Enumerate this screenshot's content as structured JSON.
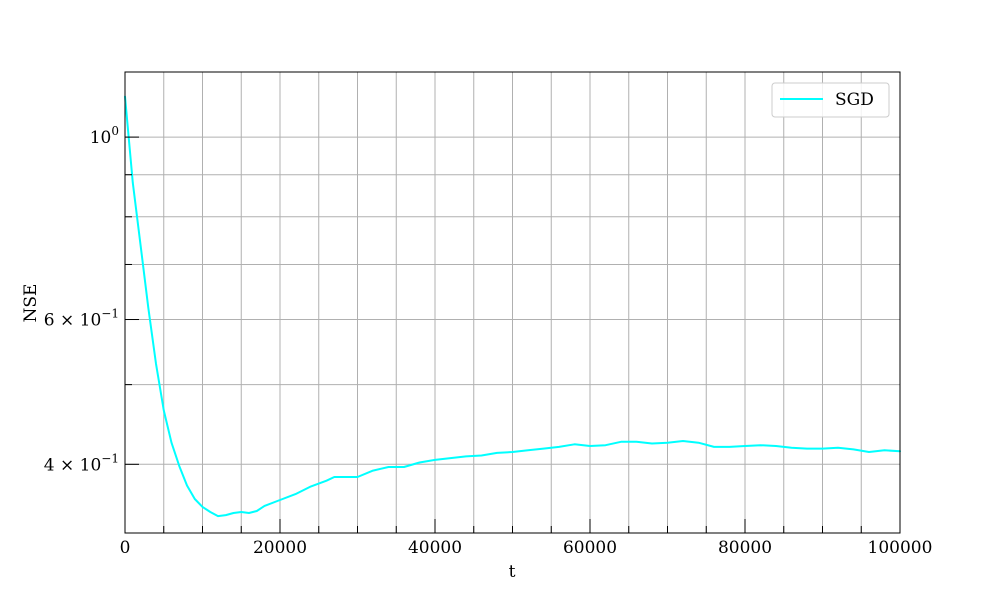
{
  "chart_data": {
    "type": "line",
    "title": "",
    "xlabel": "t",
    "ylabel": "NSE",
    "xlim": [
      0,
      100000
    ],
    "ylim": [
      0.33,
      1.2
    ],
    "yscale": "log",
    "grid": true,
    "legend_position": "top-right",
    "x_ticks": [
      {
        "value": 0,
        "label": "0"
      },
      {
        "value": 20000,
        "label": "20000"
      },
      {
        "value": 40000,
        "label": "40000"
      },
      {
        "value": 60000,
        "label": "60000"
      },
      {
        "value": 80000,
        "label": "80000"
      },
      {
        "value": 100000,
        "label": "100000"
      }
    ],
    "x_minor_ticks": [
      5000,
      10000,
      15000,
      25000,
      30000,
      35000,
      45000,
      50000,
      55000,
      65000,
      70000,
      75000,
      85000,
      90000,
      95000
    ],
    "y_ticks": [
      {
        "value": 1.0,
        "label": "10",
        "sup": "0"
      },
      {
        "value": 0.6,
        "label": "6 × 10",
        "sup": "−1"
      },
      {
        "value": 0.4,
        "label": "4 × 10",
        "sup": "−1"
      }
    ],
    "y_minor_ticks": [
      0.5,
      0.7,
      0.8,
      0.9
    ],
    "series": [
      {
        "name": "SGD",
        "color": "#00ffff",
        "x": [
          0,
          1000,
          2000,
          3000,
          4000,
          5000,
          6000,
          7000,
          8000,
          9000,
          10000,
          11000,
          12000,
          13000,
          14000,
          15000,
          16000,
          17000,
          18000,
          20000,
          22000,
          24000,
          26000,
          27000,
          29000,
          30000,
          32000,
          34000,
          36000,
          38000,
          40000,
          42000,
          44000,
          46000,
          48000,
          50000,
          52000,
          54000,
          56000,
          58000,
          60000,
          62000,
          64000,
          66000,
          68000,
          70000,
          72000,
          74000,
          76000,
          78000,
          80000,
          82000,
          84000,
          86000,
          88000,
          90000,
          92000,
          94000,
          96000,
          98000,
          100000
        ],
        "y": [
          1.12,
          0.88,
          0.74,
          0.62,
          0.53,
          0.465,
          0.425,
          0.398,
          0.377,
          0.363,
          0.355,
          0.35,
          0.346,
          0.347,
          0.349,
          0.35,
          0.349,
          0.351,
          0.356,
          0.362,
          0.368,
          0.376,
          0.382,
          0.386,
          0.386,
          0.386,
          0.393,
          0.397,
          0.397,
          0.402,
          0.405,
          0.407,
          0.409,
          0.41,
          0.413,
          0.414,
          0.416,
          0.418,
          0.42,
          0.423,
          0.421,
          0.422,
          0.426,
          0.426,
          0.424,
          0.425,
          0.427,
          0.425,
          0.42,
          0.42,
          0.421,
          0.422,
          0.421,
          0.419,
          0.418,
          0.418,
          0.419,
          0.417,
          0.414,
          0.416,
          0.415
        ]
      }
    ]
  }
}
